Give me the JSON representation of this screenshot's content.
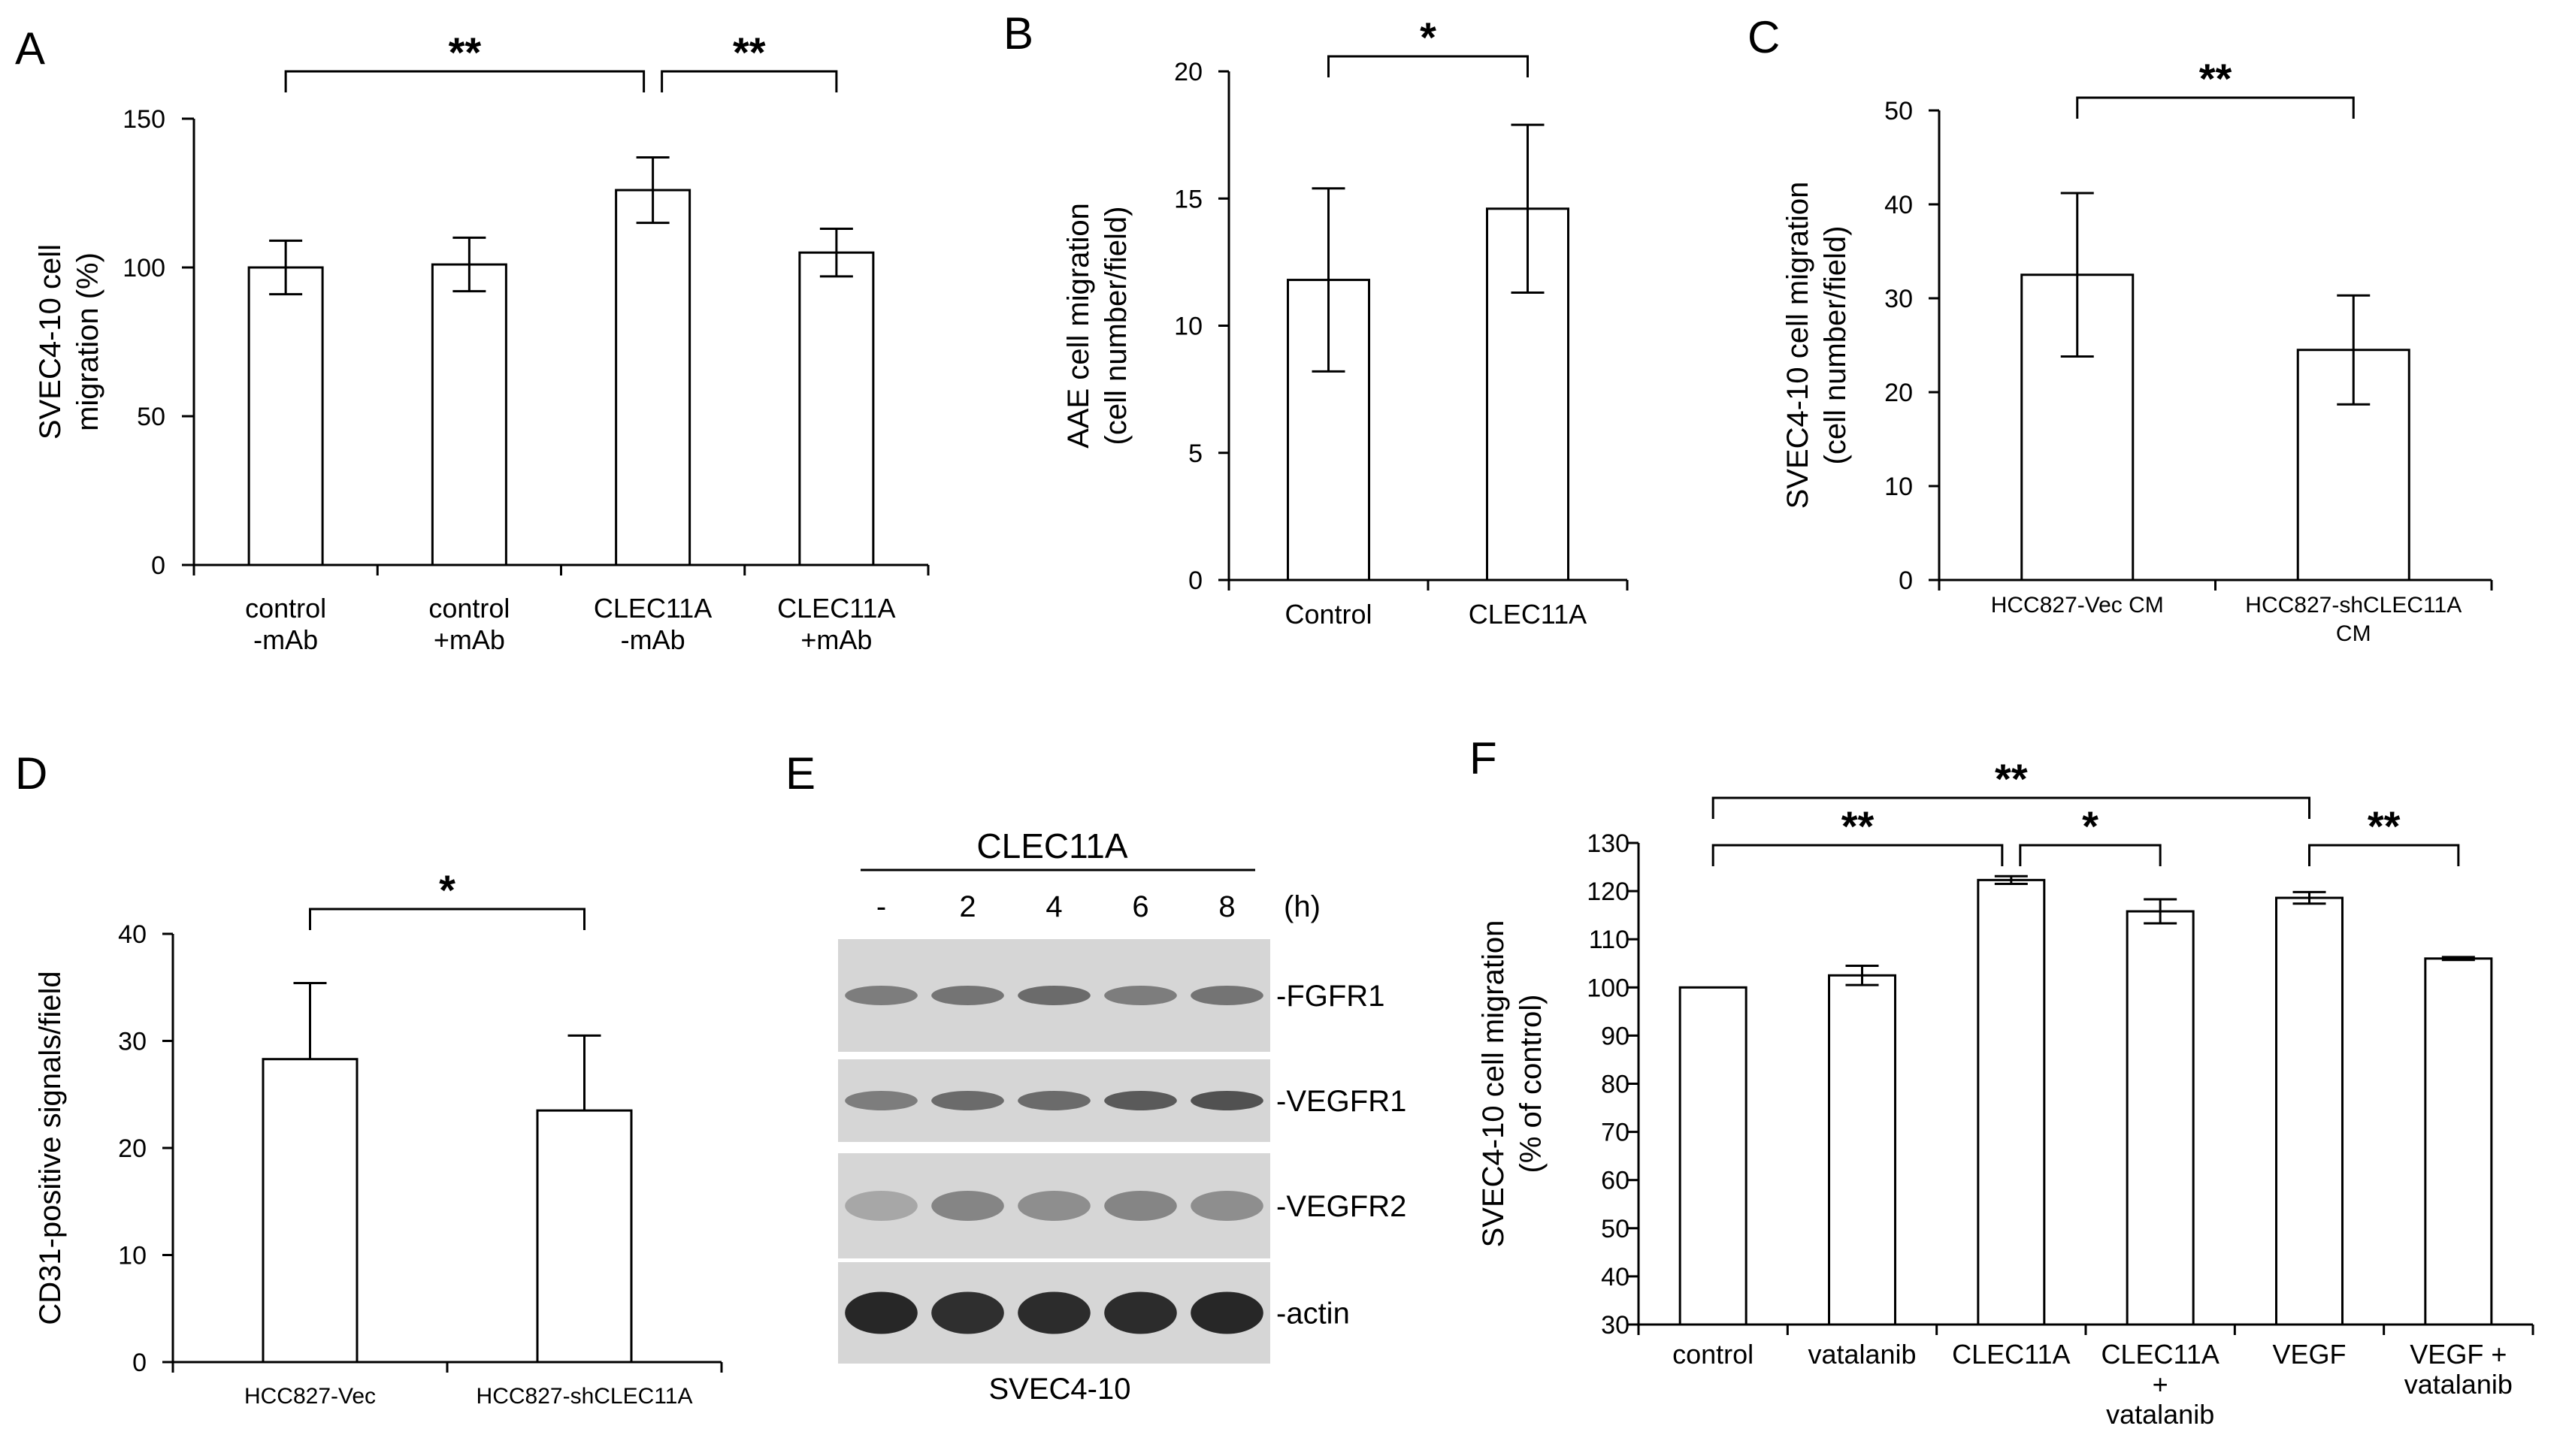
{
  "panels": {
    "A": "A",
    "B": "B",
    "C": "C",
    "D": "D",
    "E": "E",
    "F": "F"
  },
  "chart_data": [
    {
      "id": "A",
      "type": "bar",
      "ylabel_lines": [
        "SVEC4-10 cell",
        "migration (%)"
      ],
      "ylim": [
        0,
        150
      ],
      "yticks": [
        0,
        50,
        100,
        150
      ],
      "categories": [
        [
          "control",
          "-mAb"
        ],
        [
          "control",
          "+mAb"
        ],
        [
          "CLEC11A",
          "-mAb"
        ],
        [
          "CLEC11A",
          "+mAb"
        ]
      ],
      "values": [
        100,
        101,
        126,
        105
      ],
      "errors": [
        9,
        9,
        11,
        8
      ],
      "significance": [
        {
          "from": 0,
          "to": 2,
          "label": "**"
        },
        {
          "from": 2,
          "to": 3,
          "label": "**"
        }
      ]
    },
    {
      "id": "B",
      "type": "bar",
      "ylabel_lines": [
        "AAE cell migration",
        "(cell number/field)"
      ],
      "ylim": [
        0,
        20
      ],
      "yticks": [
        0,
        5,
        10,
        15,
        20
      ],
      "categories": [
        [
          "Control"
        ],
        [
          "CLEC11A"
        ]
      ],
      "values": [
        11.8,
        14.6
      ],
      "errors": [
        3.6,
        3.3
      ],
      "significance": [
        {
          "from": 0,
          "to": 1,
          "label": "*"
        }
      ]
    },
    {
      "id": "C",
      "type": "bar",
      "ylabel_lines": [
        "SVEC4-10 cell migration",
        "(cell number/field)"
      ],
      "ylim": [
        0,
        50
      ],
      "yticks": [
        0,
        10,
        20,
        30,
        40,
        50
      ],
      "categories": [
        [
          "HCC827-Vec CM"
        ],
        [
          "HCC827-shCLEC11A",
          "CM"
        ]
      ],
      "values": [
        32.5,
        24.5
      ],
      "errors": [
        8.7,
        5.8
      ],
      "significance": [
        {
          "from": 0,
          "to": 1,
          "label": "**"
        }
      ]
    },
    {
      "id": "D",
      "type": "bar",
      "ylabel_lines": [
        "CD31-positive signals/field"
      ],
      "ylim": [
        0,
        40
      ],
      "yticks": [
        0,
        10,
        20,
        30,
        40
      ],
      "categories": [
        [
          "HCC827-Vec"
        ],
        [
          "HCC827-shCLEC11A"
        ]
      ],
      "values": [
        28.3,
        23.5
      ],
      "errors": [
        7.1,
        7.0
      ],
      "error_direction": "up",
      "significance": [
        {
          "from": 0,
          "to": 1,
          "label": "*"
        }
      ]
    },
    {
      "id": "F",
      "type": "bar",
      "ylabel_lines": [
        "SVEC4-10 cell migration",
        "(% of control)"
      ],
      "ylim": [
        30,
        130
      ],
      "yticks": [
        30,
        40,
        50,
        60,
        70,
        80,
        90,
        100,
        110,
        120,
        130
      ],
      "categories": [
        [
          "control"
        ],
        [
          "vatalanib"
        ],
        [
          "CLEC11A"
        ],
        [
          "CLEC11A",
          "+",
          "vatalanib"
        ],
        [
          "VEGF"
        ],
        [
          "VEGF +",
          "vatalanib"
        ]
      ],
      "values": [
        100,
        102.5,
        122.3,
        115.8,
        118.6,
        106
      ],
      "errors": [
        0,
        2.0,
        0.8,
        2.5,
        1.2,
        0.3
      ],
      "significance": [
        {
          "from": 0,
          "to": 4,
          "label": "**",
          "level": 2
        },
        {
          "from": 0,
          "to": 2,
          "label": "**",
          "level": 1
        },
        {
          "from": 2,
          "to": 3,
          "label": "*",
          "level": 1
        },
        {
          "from": 4,
          "to": 5,
          "label": "**",
          "level": 1
        }
      ]
    }
  ],
  "blot": {
    "treatment": "CLEC11A",
    "lanes": [
      "-",
      "2",
      "4",
      "6",
      "8"
    ],
    "time_unit": "(h)",
    "rows": [
      {
        "label": "-FGFR1",
        "intensity": [
          0.45,
          0.5,
          0.55,
          0.45,
          0.5
        ]
      },
      {
        "label": "-VEGFR1",
        "intensity": [
          0.45,
          0.55,
          0.55,
          0.65,
          0.7
        ]
      },
      {
        "label": "-VEGFR2",
        "intensity": [
          0.2,
          0.4,
          0.35,
          0.4,
          0.35
        ]
      },
      {
        "label": "-actin",
        "intensity": [
          0.95,
          0.9,
          0.92,
          0.92,
          0.95
        ]
      }
    ],
    "cell_line": "SVEC4-10"
  }
}
